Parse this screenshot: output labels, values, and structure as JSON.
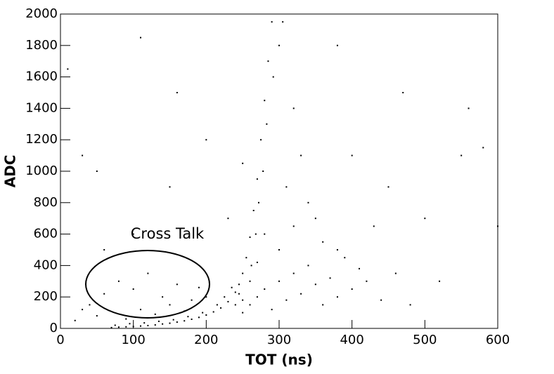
{
  "chart_data": {
    "type": "scatter",
    "xlabel": "TOT (ns)",
    "ylabel": "ADC",
    "annotation": "Cross Talk",
    "color": "#000000",
    "x": [
      70,
      80,
      90,
      100,
      110,
      120,
      130,
      140,
      150,
      160,
      170,
      180,
      190,
      200,
      210,
      220,
      230,
      240,
      245,
      250,
      255,
      260,
      265,
      270,
      275,
      280,
      285,
      290,
      75,
      95,
      115,
      135,
      155,
      175,
      195,
      215,
      225,
      235,
      245,
      250,
      240,
      260,
      262,
      268,
      272,
      278,
      283,
      292,
      300,
      305,
      250,
      260,
      270,
      280,
      290,
      300,
      310,
      320,
      330,
      340,
      350,
      360,
      370,
      380,
      390,
      400,
      420,
      440,
      460,
      300,
      320,
      340,
      310,
      330,
      350,
      280,
      360,
      380,
      410,
      270,
      40,
      60,
      80,
      100,
      120,
      140,
      160,
      180,
      110,
      130,
      150,
      190,
      50,
      20,
      30,
      90,
      170,
      200,
      10,
      30,
      50,
      110,
      160,
      200,
      150,
      250,
      400,
      450,
      500,
      550,
      560,
      580,
      600,
      520,
      480,
      430,
      470,
      100,
      60,
      380,
      320,
      230
    ],
    "values": [
      5,
      8,
      10,
      12,
      15,
      18,
      22,
      28,
      33,
      40,
      48,
      58,
      70,
      85,
      105,
      130,
      170,
      230,
      280,
      350,
      450,
      580,
      750,
      950,
      1200,
      1450,
      1700,
      1950,
      20,
      30,
      35,
      45,
      55,
      75,
      100,
      150,
      200,
      260,
      220,
      180,
      150,
      300,
      400,
      600,
      800,
      1000,
      1300,
      1600,
      1800,
      1950,
      100,
      150,
      200,
      250,
      120,
      300,
      180,
      350,
      220,
      400,
      280,
      150,
      320,
      200,
      450,
      250,
      300,
      180,
      350,
      500,
      650,
      800,
      900,
      1100,
      700,
      600,
      550,
      500,
      380,
      420,
      150,
      220,
      300,
      250,
      350,
      200,
      280,
      180,
      120,
      90,
      150,
      260,
      80,
      50,
      120,
      60,
      110,
      200,
      1650,
      1100,
      1000,
      1850,
      1500,
      1200,
      900,
      1050,
      1100,
      900,
      700,
      1100,
      1400,
      1150,
      650,
      300,
      150,
      650,
      1500,
      600,
      500,
      1800,
      1400,
      700
    ],
    "xlim": [
      0,
      600
    ],
    "xticks": [
      0,
      100,
      200,
      300,
      400,
      500,
      600
    ],
    "ylim": [
      0,
      2000
    ],
    "yticks": [
      0,
      200,
      400,
      600,
      800,
      1000,
      1200,
      1400,
      1600,
      1800,
      2000
    ]
  }
}
